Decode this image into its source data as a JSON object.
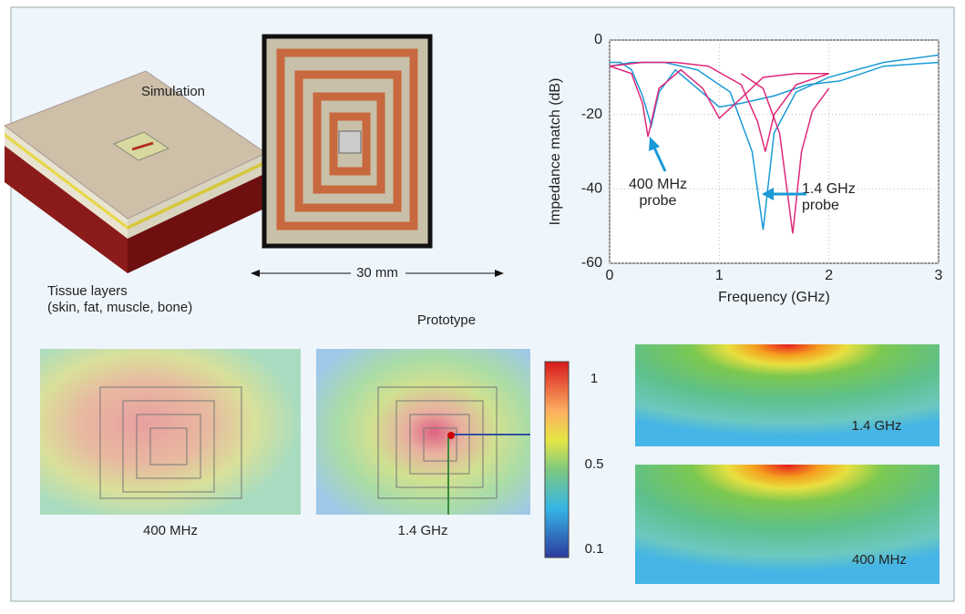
{
  "chart_data": {
    "type": "line",
    "xlabel": "Frequency (GHz)",
    "ylabel": "Impedance match (dB)",
    "xlim": [
      0,
      3
    ],
    "xticks": [
      0,
      1,
      2,
      3
    ],
    "ylim": [
      -60,
      0
    ],
    "yticks": [
      0,
      -20,
      -40,
      -60
    ],
    "grid": true,
    "series": [
      {
        "color": "#1a9ad6",
        "x": [
          0,
          0.1,
          0.2,
          0.3,
          0.38,
          0.45,
          0.6,
          0.8,
          1.0,
          1.2,
          1.5,
          1.8,
          2.1,
          2.5,
          3
        ],
        "values": [
          -6,
          -6,
          -8,
          -15,
          -23,
          -14,
          -8,
          -13,
          -18,
          -17,
          -15,
          -12,
          -11,
          -7,
          -6
        ]
      },
      {
        "color": "#1a9ad6",
        "x": [
          0,
          0.2,
          0.5,
          0.8,
          1.1,
          1.3,
          1.4,
          1.5,
          1.7,
          2.0,
          2.5,
          3
        ],
        "values": [
          -7,
          -6,
          -6,
          -8,
          -14,
          -30,
          -51,
          -25,
          -14,
          -10,
          -6,
          -4
        ]
      },
      {
        "color": "#e0287a",
        "x": [
          0,
          0.2,
          0.3,
          0.35,
          0.45,
          0.65,
          0.85,
          1.0,
          1.15,
          1.4,
          1.7,
          2.0
        ],
        "values": [
          -7,
          -9,
          -17,
          -26,
          -13,
          -8,
          -13,
          -21,
          -17,
          -10,
          -9,
          -9
        ]
      },
      {
        "color": "#e0287a",
        "x": [
          0,
          0.3,
          0.6,
          0.9,
          1.2,
          1.35,
          1.42,
          1.5,
          1.7,
          2.0
        ],
        "values": [
          -7,
          -6,
          -6,
          -7,
          -12,
          -22,
          -30,
          -20,
          -12,
          -9
        ]
      },
      {
        "color": "#e0287a",
        "x": [
          1.2,
          1.4,
          1.55,
          1.67,
          1.75,
          1.85,
          2.0
        ],
        "values": [
          -9,
          -13,
          -25,
          -52,
          -30,
          -19,
          -13
        ]
      }
    ],
    "annotations": [
      {
        "lines": [
          "400 MHz",
          "probe"
        ]
      },
      {
        "lines": [
          "1.4 GHz",
          "probe"
        ]
      }
    ]
  },
  "figure": {
    "simulation_label": "Simulation",
    "tissue_label": [
      "Tissue layers",
      "(skin, fat, muscle, bone)"
    ],
    "scale_label": "30 mm",
    "prototype_label": "Prototype",
    "heatmap_captions": [
      "400 MHz",
      "1.4 GHz"
    ],
    "side_ticks": [
      "1",
      "0.5",
      "0.1"
    ],
    "side_labels": [
      "1.4 GHz",
      "400 MHz"
    ]
  }
}
